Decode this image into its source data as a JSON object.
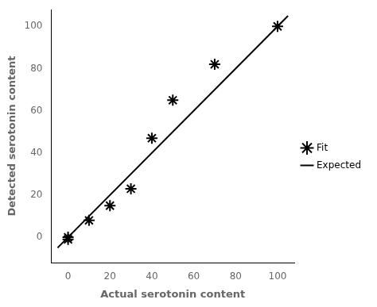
{
  "chart_data": {
    "type": "scatter",
    "xlabel": "Actual serotonin content",
    "ylabel": "Detected serotonin content",
    "series": [
      {
        "name": "Fit",
        "type": "scatter",
        "marker": "star",
        "color": "#000000",
        "x": [
          0,
          0,
          10,
          20,
          30,
          40,
          50,
          70,
          100
        ],
        "values": [
          -1,
          0,
          8,
          15,
          23,
          47,
          65,
          82,
          100
        ]
      },
      {
        "name": "Expected",
        "type": "line",
        "line_style": "solid",
        "color": "#000000",
        "x": [
          -5,
          105
        ],
        "values": [
          -5,
          105
        ]
      }
    ],
    "xlim": [
      -8,
      108
    ],
    "ylim": [
      -12,
      108
    ],
    "xticks": [
      0,
      20,
      40,
      60,
      80,
      100
    ],
    "yticks": [
      0,
      20,
      40,
      60,
      80,
      100
    ],
    "grid": false,
    "legend": "right"
  }
}
